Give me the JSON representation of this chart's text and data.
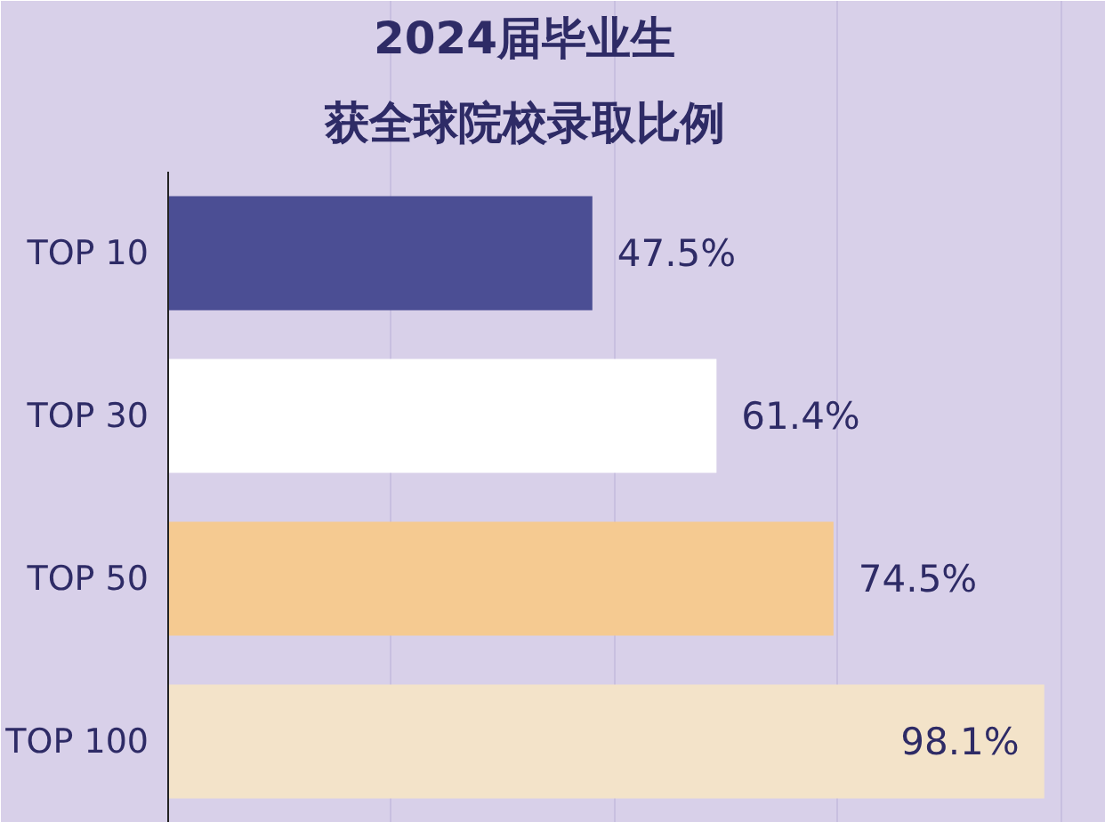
{
  "chart_data": {
    "type": "bar",
    "orientation": "horizontal",
    "title": "2024届毕业生",
    "subtitle": "获全球院校录取比例",
    "categories": [
      "TOP 10",
      "TOP 30",
      "TOP 50",
      "TOP 100"
    ],
    "values": [
      47.5,
      61.4,
      74.5,
      98.1
    ],
    "colors": [
      "#4b4e94",
      "#ffffff",
      "#f5ca91",
      "#f3e3c9"
    ],
    "value_labels": [
      "47.5%",
      "61.4%",
      "74.5%",
      "98.1%"
    ],
    "xlim": [
      0,
      105
    ],
    "xticks": [
      {
        "value": 25,
        "label": null
      },
      {
        "value": 50,
        "label": null
      },
      {
        "value": 75,
        "label": null
      },
      {
        "value": 100,
        "label": null
      }
    ],
    "tick_labels": "y",
    "grid": "x"
  }
}
